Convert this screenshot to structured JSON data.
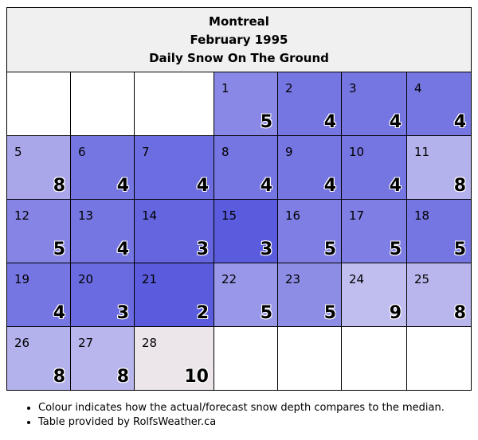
{
  "header": {
    "city": "Montreal",
    "month": "February 1995",
    "subtitle": "Daily Snow On The Ground"
  },
  "colors": {
    "border": "#000000",
    "header_bg": "#f0f0f0",
    "empty": "#ffffff",
    "below_median_light": "#8787e6",
    "below_median": "#7474e2",
    "well_below_median": "#5c5ede",
    "near_median": "#b8b6ec",
    "above_median": "#ece6ea"
  },
  "calendar": {
    "leading_blanks": 3,
    "trailing_blanks": 4,
    "days": [
      {
        "day": "1",
        "snow": "5",
        "color": "#8a88e6"
      },
      {
        "day": "2",
        "snow": "4",
        "color": "#7676e2"
      },
      {
        "day": "3",
        "snow": "4",
        "color": "#7676e2"
      },
      {
        "day": "4",
        "snow": "4",
        "color": "#7676e2"
      },
      {
        "day": "5",
        "snow": "8",
        "color": "#a9a7ea"
      },
      {
        "day": "6",
        "snow": "4",
        "color": "#7676e2"
      },
      {
        "day": "7",
        "snow": "4",
        "color": "#6c6de0"
      },
      {
        "day": "8",
        "snow": "4",
        "color": "#7676e2"
      },
      {
        "day": "9",
        "snow": "4",
        "color": "#7676e2"
      },
      {
        "day": "10",
        "snow": "4",
        "color": "#7676e2"
      },
      {
        "day": "11",
        "snow": "8",
        "color": "#b4b2ec"
      },
      {
        "day": "12",
        "snow": "5",
        "color": "#8685e5"
      },
      {
        "day": "13",
        "snow": "4",
        "color": "#7676e2"
      },
      {
        "day": "14",
        "snow": "3",
        "color": "#6465df"
      },
      {
        "day": "15",
        "snow": "3",
        "color": "#5a5cdd"
      },
      {
        "day": "16",
        "snow": "5",
        "color": "#7e7ee4"
      },
      {
        "day": "17",
        "snow": "5",
        "color": "#7e7ee4"
      },
      {
        "day": "18",
        "snow": "5",
        "color": "#7676e2"
      },
      {
        "day": "19",
        "snow": "4",
        "color": "#7676e2"
      },
      {
        "day": "20",
        "snow": "3",
        "color": "#6a6be0"
      },
      {
        "day": "21",
        "snow": "2",
        "color": "#5a5cdd"
      },
      {
        "day": "22",
        "snow": "5",
        "color": "#9998e8"
      },
      {
        "day": "23",
        "snow": "5",
        "color": "#8e8de6"
      },
      {
        "day": "24",
        "snow": "9",
        "color": "#c0beee"
      },
      {
        "day": "25",
        "snow": "8",
        "color": "#b8b6ec"
      },
      {
        "day": "26",
        "snow": "8",
        "color": "#b4b2ec"
      },
      {
        "day": "27",
        "snow": "8",
        "color": "#b8b6ec"
      },
      {
        "day": "28",
        "snow": "10",
        "color": "#ece6ea"
      }
    ]
  },
  "notes": [
    "Colour indicates how the actual/forecast snow depth compares to the median.",
    "Table provided by RolfsWeather.ca"
  ]
}
